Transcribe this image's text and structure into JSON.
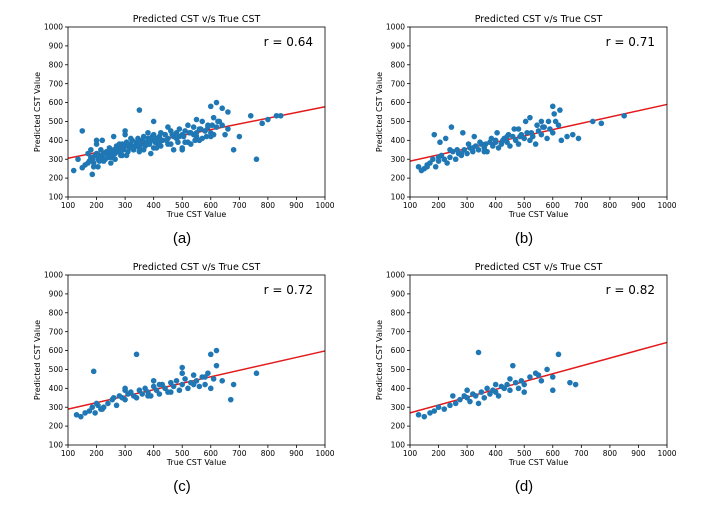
{
  "chart_data": [
    {
      "type": "scatter",
      "panel_label": "(a)",
      "title": "Predicted CST v/s True CST",
      "xlabel": "True CST Value",
      "ylabel": "Predicted CST Value",
      "xlim": [
        100,
        1000
      ],
      "ylim": [
        100,
        1000
      ],
      "xticks": [
        100,
        200,
        300,
        400,
        500,
        600,
        700,
        800,
        900,
        1000
      ],
      "yticks": [
        100,
        200,
        300,
        400,
        500,
        600,
        700,
        800,
        900,
        1000
      ],
      "annotation": "r = 0.64",
      "point_color": "#1f77b4",
      "line_color": "#e31a1c",
      "fit_line": {
        "x": [
          100,
          1000
        ],
        "y": [
          305,
          578
        ]
      },
      "x": [
        120,
        135,
        150,
        160,
        170,
        175,
        180,
        185,
        190,
        195,
        200,
        205,
        210,
        215,
        220,
        225,
        230,
        235,
        240,
        245,
        250,
        255,
        260,
        265,
        270,
        275,
        280,
        285,
        290,
        295,
        300,
        305,
        310,
        315,
        320,
        325,
        330,
        335,
        340,
        345,
        350,
        355,
        360,
        365,
        370,
        375,
        380,
        385,
        390,
        395,
        400,
        405,
        410,
        415,
        420,
        425,
        430,
        440,
        450,
        460,
        470,
        480,
        490,
        500,
        510,
        520,
        530,
        540,
        550,
        560,
        570,
        580,
        590,
        600,
        610,
        620,
        630,
        640,
        650,
        660,
        680,
        700,
        740,
        760,
        780,
        800,
        830,
        845,
        180,
        200,
        220,
        240,
        260,
        280,
        300,
        320,
        340,
        360,
        380,
        400,
        420,
        440,
        460,
        480,
        500,
        520,
        540,
        560,
        580,
        600,
        190,
        210,
        230,
        250,
        270,
        290,
        310,
        330,
        350,
        370,
        390,
        410,
        430,
        450,
        470,
        490,
        510,
        530,
        550,
        570,
        590,
        610,
        150,
        170,
        200,
        250,
        300,
        350,
        400,
        450,
        500,
        550,
        600,
        620,
        640,
        660,
        185,
        205,
        225,
        245,
        265,
        285,
        305,
        325,
        345,
        365,
        385,
        405,
        425,
        445,
        465,
        485,
        505,
        525,
        545,
        565,
        585,
        605,
        625
      ],
      "y": [
        240,
        300,
        255,
        270,
        280,
        290,
        310,
        300,
        260,
        320,
        330,
        300,
        290,
        350,
        310,
        330,
        300,
        340,
        320,
        360,
        340,
        310,
        350,
        330,
        370,
        340,
        360,
        320,
        380,
        350,
        370,
        390,
        340,
        360,
        380,
        400,
        350,
        370,
        390,
        410,
        360,
        380,
        400,
        420,
        370,
        390,
        410,
        380,
        400,
        420,
        430,
        390,
        410,
        380,
        420,
        440,
        400,
        430,
        410,
        450,
        420,
        440,
        460,
        430,
        450,
        480,
        440,
        470,
        420,
        460,
        500,
        450,
        480,
        440,
        520,
        470,
        500,
        480,
        430,
        460,
        350,
        420,
        530,
        300,
        490,
        510,
        530,
        530,
        350,
        380,
        400,
        310,
        420,
        380,
        450,
        410,
        370,
        400,
        440,
        360,
        390,
        430,
        380,
        410,
        350,
        390,
        430,
        400,
        450,
        420,
        280,
        320,
        300,
        330,
        360,
        320,
        380,
        350,
        340,
        370,
        330,
        360,
        400,
        380,
        350,
        420,
        390,
        380,
        440,
        410,
        470,
        430,
        450,
        330,
        400,
        280,
        430,
        560,
        500,
        470,
        360,
        510,
        580,
        600,
        570,
        550,
        220,
        260,
        290,
        310,
        300,
        340,
        320,
        360,
        390,
        350,
        380,
        410,
        370,
        400,
        430,
        390,
        420,
        440,
        400,
        460,
        420,
        480,
        500
      ]
    },
    {
      "type": "scatter",
      "panel_label": "(b)",
      "title": "Predicted CST v/s True CST",
      "xlabel": "True CST Value",
      "ylabel": "Predicted CST Value",
      "xlim": [
        100,
        1000
      ],
      "ylim": [
        100,
        1000
      ],
      "xticks": [
        100,
        200,
        300,
        400,
        500,
        600,
        700,
        800,
        900,
        1000
      ],
      "yticks": [
        100,
        200,
        300,
        400,
        500,
        600,
        700,
        800,
        900,
        1000
      ],
      "annotation": "r = 0.71",
      "point_color": "#1f77b4",
      "line_color": "#e31a1c",
      "fit_line": {
        "x": [
          100,
          1000
        ],
        "y": [
          290,
          590
        ]
      },
      "x": [
        130,
        140,
        150,
        160,
        170,
        180,
        190,
        200,
        210,
        220,
        230,
        240,
        250,
        260,
        270,
        280,
        290,
        300,
        310,
        320,
        330,
        340,
        350,
        360,
        370,
        380,
        390,
        400,
        410,
        420,
        430,
        440,
        450,
        460,
        470,
        480,
        490,
        500,
        510,
        520,
        530,
        540,
        550,
        560,
        570,
        580,
        590,
        600,
        610,
        620,
        630,
        650,
        670,
        690,
        740,
        770,
        850,
        185,
        205,
        225,
        245,
        265,
        285,
        305,
        325,
        345,
        365,
        385,
        405,
        425,
        445,
        465,
        485,
        505,
        525,
        545,
        565,
        585,
        605,
        625,
        160,
        200,
        240,
        280,
        320,
        360,
        400,
        440,
        480,
        520,
        560,
        600
      ],
      "y": [
        260,
        240,
        250,
        270,
        280,
        300,
        260,
        290,
        320,
        300,
        280,
        310,
        340,
        300,
        330,
        320,
        350,
        330,
        360,
        340,
        370,
        350,
        380,
        360,
        340,
        390,
        370,
        400,
        360,
        380,
        410,
        390,
        370,
        420,
        400,
        380,
        430,
        410,
        440,
        400,
        420,
        380,
        450,
        430,
        470,
        410,
        460,
        440,
        500,
        480,
        400,
        420,
        430,
        410,
        500,
        490,
        530,
        430,
        390,
        410,
        470,
        350,
        440,
        380,
        420,
        390,
        380,
        410,
        440,
        400,
        430,
        460,
        420,
        500,
        440,
        480,
        470,
        500,
        540,
        560,
        260,
        310,
        350,
        330,
        360,
        340,
        390,
        420,
        460,
        520,
        500,
        580
      ]
    },
    {
      "type": "scatter",
      "panel_label": "(c)",
      "title": "Predicted CST v/s True CST",
      "xlabel": "True CST Value",
      "ylabel": "Predicted CST Value",
      "xlim": [
        100,
        1000
      ],
      "ylim": [
        100,
        1000
      ],
      "xticks": [
        100,
        200,
        300,
        400,
        500,
        600,
        700,
        800,
        900,
        1000
      ],
      "yticks": [
        100,
        200,
        300,
        400,
        500,
        600,
        700,
        800,
        900,
        1000
      ],
      "annotation": "r = 0.72",
      "point_color": "#1f77b4",
      "line_color": "#e31a1c",
      "fit_line": {
        "x": [
          100,
          1000
        ],
        "y": [
          290,
          598
        ]
      },
      "x": [
        130,
        145,
        160,
        175,
        185,
        195,
        205,
        215,
        225,
        240,
        255,
        270,
        280,
        290,
        300,
        310,
        320,
        330,
        340,
        350,
        360,
        370,
        380,
        390,
        400,
        410,
        420,
        430,
        440,
        450,
        460,
        470,
        480,
        490,
        500,
        510,
        520,
        530,
        540,
        550,
        560,
        570,
        580,
        590,
        600,
        610,
        620,
        640,
        670,
        680,
        760,
        190,
        220,
        260,
        300,
        340,
        380,
        420,
        460,
        500,
        540,
        580,
        620,
        200,
        300,
        400,
        500,
        600
      ],
      "y": [
        260,
        250,
        270,
        280,
        300,
        270,
        310,
        290,
        300,
        320,
        340,
        310,
        360,
        350,
        340,
        370,
        380,
        360,
        350,
        390,
        370,
        400,
        380,
        360,
        410,
        390,
        370,
        420,
        400,
        380,
        430,
        410,
        440,
        390,
        420,
        450,
        400,
        430,
        470,
        440,
        410,
        460,
        420,
        480,
        400,
        450,
        520,
        440,
        340,
        420,
        480,
        490,
        290,
        350,
        390,
        580,
        360,
        420,
        380,
        510,
        420,
        460,
        600,
        320,
        400,
        440,
        480,
        580
      ]
    },
    {
      "type": "scatter",
      "panel_label": "(d)",
      "title": "Predicted CST v/s True CST",
      "xlabel": "True CST Value",
      "ylabel": "Predicted CST Value",
      "xlim": [
        100,
        1000
      ],
      "ylim": [
        100,
        1000
      ],
      "xticks": [
        100,
        200,
        300,
        400,
        500,
        600,
        700,
        800,
        900,
        1000
      ],
      "yticks": [
        100,
        200,
        300,
        400,
        500,
        600,
        700,
        800,
        900,
        1000
      ],
      "annotation": "r = 0.82",
      "point_color": "#1f77b4",
      "line_color": "#e31a1c",
      "fit_line": {
        "x": [
          100,
          1000
        ],
        "y": [
          270,
          643
        ]
      },
      "x": [
        130,
        150,
        170,
        185,
        200,
        220,
        240,
        260,
        275,
        290,
        300,
        310,
        320,
        330,
        340,
        350,
        360,
        370,
        380,
        390,
        400,
        410,
        420,
        430,
        440,
        450,
        460,
        470,
        480,
        490,
        500,
        520,
        540,
        560,
        580,
        600,
        620,
        660,
        680,
        250,
        300,
        340,
        400,
        450,
        500,
        550,
        600
      ],
      "y": [
        260,
        250,
        270,
        280,
        300,
        290,
        310,
        320,
        340,
        360,
        350,
        330,
        370,
        360,
        590,
        380,
        350,
        400,
        370,
        390,
        380,
        360,
        410,
        400,
        420,
        390,
        520,
        430,
        400,
        440,
        420,
        460,
        480,
        440,
        500,
        460,
        580,
        430,
        420,
        360,
        390,
        320,
        420,
        450,
        380,
        470,
        390
      ]
    }
  ]
}
